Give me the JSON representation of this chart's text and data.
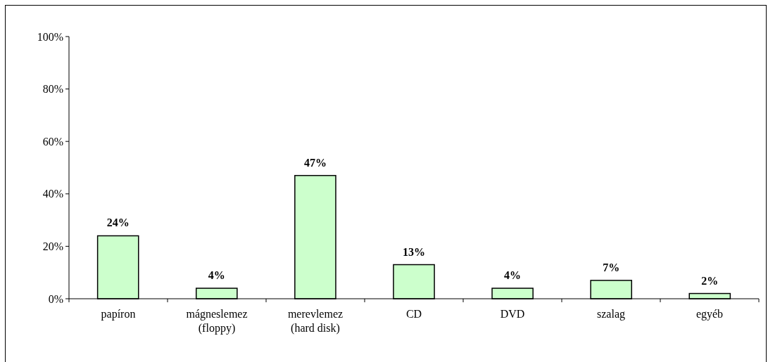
{
  "chart_data": {
    "type": "bar",
    "categories": [
      "papíron",
      "mágneslemez (floppy)",
      "merevlemez (hard disk)",
      "CD",
      "DVD",
      "szalag",
      "egyéb"
    ],
    "values": [
      24,
      4,
      47,
      13,
      4,
      7,
      2
    ],
    "value_labels": [
      "24%",
      "4%",
      "47%",
      "13%",
      "4%",
      "7%",
      "2%"
    ],
    "color": "#ccffcc",
    "ylim": [
      0,
      100
    ],
    "yticks": [
      {
        "value": 0,
        "label": "0%"
      },
      {
        "value": 20,
        "label": "20%"
      },
      {
        "value": 40,
        "label": "40%"
      },
      {
        "value": 60,
        "label": "60%"
      },
      {
        "value": 80,
        "label": "80%"
      },
      {
        "value": 100,
        "label": "100%"
      }
    ],
    "grid": false
  }
}
